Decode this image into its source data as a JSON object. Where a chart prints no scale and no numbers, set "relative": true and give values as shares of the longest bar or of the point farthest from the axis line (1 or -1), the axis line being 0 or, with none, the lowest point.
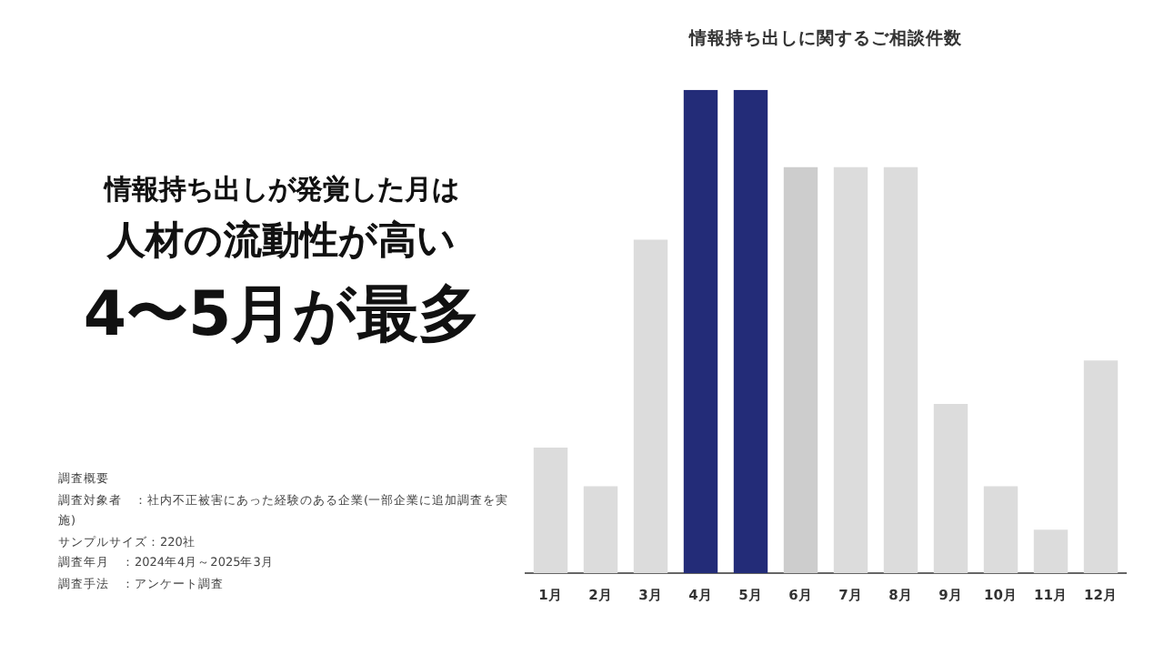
{
  "chart_data": {
    "type": "bar",
    "title": "情報持ち出しに関するご相談件数",
    "categories": [
      "1月",
      "2月",
      "3月",
      "4月",
      "5月",
      "6月",
      "7月",
      "8月",
      "9月",
      "10月",
      "11月",
      "12月"
    ],
    "values": [
      0.26,
      0.18,
      0.69,
      1,
      1,
      0.84,
      0.84,
      0.84,
      0.35,
      0.18,
      0.09,
      0.44
    ],
    "colors": [
      "#dcdcdc",
      "#dcdcdc",
      "#dcdcdc",
      "#232c78",
      "#232c78",
      "#cdcdcd",
      "#dcdcdc",
      "#dcdcdc",
      "#dcdcdc",
      "#dcdcdc",
      "#dcdcdc",
      "#dcdcdc"
    ],
    "relative": true,
    "grid": false,
    "legend": false,
    "annotations": [
      "情報持ち出しが発覚した月は",
      "人材の流動性が高い",
      "4〜5月が最多",
      "調査概要",
      "調査対象者　：社内不正被害にあった経験のある企業(一部企業に追加調査を実施)",
      "サンプルサイズ：220社",
      "調査年月　：2024年4月～2025年3月",
      "調査手法　：アンケート調査"
    ]
  }
}
